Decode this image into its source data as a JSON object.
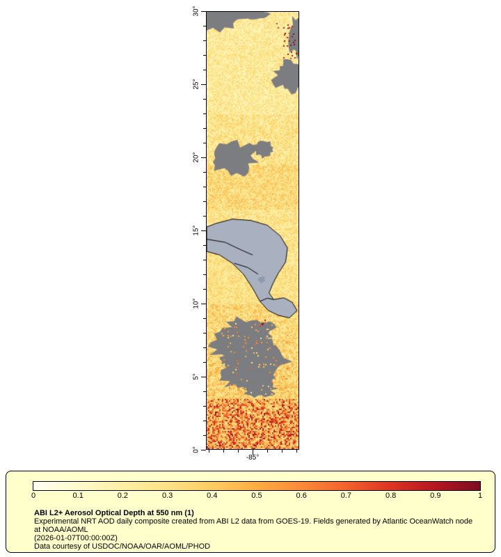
{
  "map": {
    "y_tick_labels": [
      "30°",
      "25°",
      "20°",
      "15°",
      "10°",
      "5°",
      "0°"
    ],
    "x_tick_label": "-85°",
    "land_color": "#a9b0bf",
    "missing_color": "#7b7d80",
    "coastline_color": "#000000"
  },
  "legend": {
    "background_color": "#ffffcc",
    "colorbar_ticks": [
      "0",
      "0.1",
      "0.2",
      "0.3",
      "0.4",
      "0.5",
      "0.6",
      "0.7",
      "0.8",
      "0.9",
      "1"
    ],
    "title": "ABI L2+ Aerosol Optical Depth at 550 nm (1)",
    "description": "Experimental NRT AOD daily composite created from ABI L2 data from GOES-19. Fields generated by Atlantic OceanWatch node at NOAA/AOML",
    "timestamp": "(2026-01-07T00:00:00Z)",
    "credit": "Data courtesy of USDOC/NOAA/OAR/AOML/PHOD"
  },
  "chart_data": {
    "type": "heatmap",
    "title": "ABI L2+ Aerosol Optical Depth at 550 nm (1)",
    "variable": "Aerosol Optical Depth at 550 nm",
    "x_axis": {
      "tick_labels": [
        "-85°"
      ]
    },
    "y_axis": {
      "tick_labels": [
        "30°",
        "25°",
        "20°",
        "15°",
        "10°",
        "5°",
        "0°"
      ],
      "range": [
        0,
        30
      ]
    },
    "legend_position": "bottom",
    "colorbar": {
      "min": 0,
      "max": 1,
      "tick_values": [
        0,
        0.1,
        0.2,
        0.3,
        0.4,
        0.5,
        0.6,
        0.7,
        0.8,
        0.9,
        1
      ],
      "gradient_stops": [
        {
          "pos": 0.0,
          "color": "#fffef2"
        },
        {
          "pos": 0.1,
          "color": "#fffacd"
        },
        {
          "pos": 0.2,
          "color": "#ffefa4"
        },
        {
          "pos": 0.3,
          "color": "#fee287"
        },
        {
          "pos": 0.4,
          "color": "#fecc62"
        },
        {
          "pos": 0.5,
          "color": "#fdac42"
        },
        {
          "pos": 0.6,
          "color": "#fb8a3a"
        },
        {
          "pos": 0.7,
          "color": "#f4622d"
        },
        {
          "pos": 0.8,
          "color": "#dd3423"
        },
        {
          "pos": 0.9,
          "color": "#b51621"
        },
        {
          "pos": 1.0,
          "color": "#7c0d20"
        }
      ]
    }
  }
}
